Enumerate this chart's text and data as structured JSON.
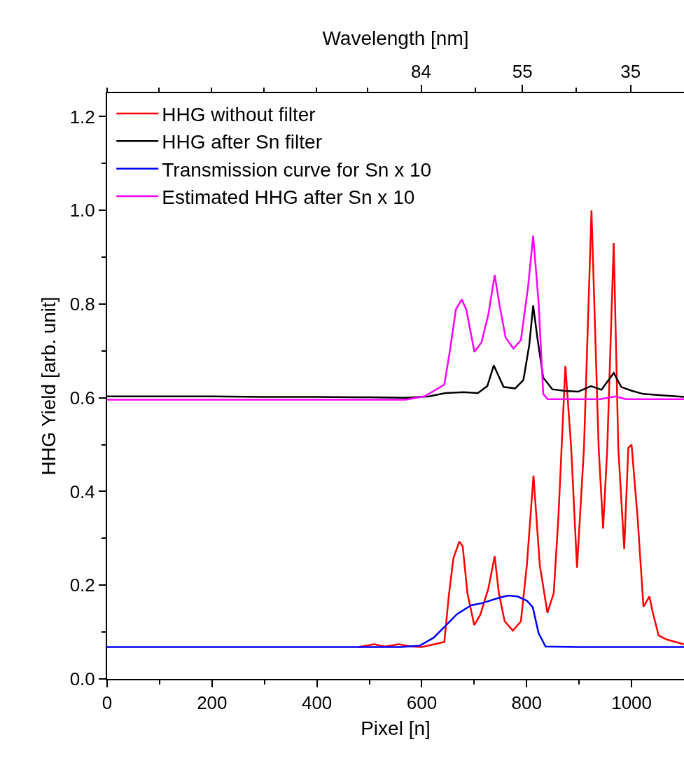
{
  "chart_data": {
    "type": "line",
    "xlabel": "Pixel [n]",
    "ylabel": "HHG Yield [arb. unit]",
    "x2label": "Wavelength [nm]",
    "xlim": [
      0,
      1100
    ],
    "ylim": [
      0,
      1.25
    ],
    "xticks": [
      0,
      {
        "value": 100,
        "label": null
      },
      200,
      {
        "value": 300,
        "label": null
      },
      400,
      {
        "value": 500,
        "label": null
      },
      600,
      {
        "value": 700,
        "label": null
      },
      800,
      {
        "value": 900,
        "label": null
      },
      1000
    ],
    "x2lim": [
      312,
      28
    ],
    "log": "x2",
    "x2ticks": [
      {
        "value": 312,
        "label": null
      },
      {
        "value": 251,
        "label": null
      },
      {
        "value": 202,
        "label": null
      },
      {
        "value": 162,
        "label": null
      },
      {
        "value": 130,
        "label": null
      },
      {
        "value": 105,
        "label": null
      },
      84,
      {
        "value": 67,
        "label": null
      },
      55,
      {
        "value": 44,
        "label": null
      },
      35
    ],
    "yticks": [
      {
        "value": 0,
        "label": "0.0"
      },
      {
        "value": 0.1,
        "label": null
      },
      {
        "value": 0.2,
        "label": "0.2"
      },
      {
        "value": 0.3,
        "label": null
      },
      {
        "value": 0.4,
        "label": "0.4"
      },
      {
        "value": 0.5,
        "label": null
      },
      {
        "value": 0.6,
        "label": "0.6"
      },
      {
        "value": 0.7,
        "label": null
      },
      {
        "value": 0.8,
        "label": "0.8"
      },
      {
        "value": 0.9,
        "label": null
      },
      {
        "value": 1.0,
        "label": "1.0"
      },
      {
        "value": 1.1,
        "label": null
      },
      {
        "value": 1.2,
        "label": "1.2"
      }
    ],
    "legend": "top left",
    "marker": "none",
    "line_style": "solid",
    "series": [
      {
        "name": "HHG without filter",
        "color": "#ff0000",
        "x": [
          480,
          509,
          530,
          556,
          580,
          600,
          631.5,
          643,
          651.6,
          660.4,
          671.6,
          678,
          687,
          700,
          711.6,
          727,
          739,
          747,
          758,
          773.8,
          789,
          800.4,
          813,
          825,
          839.6,
          851.6,
          860.4,
          873.8,
          884.9,
          896,
          909.3,
          923.6,
          937.3,
          945.8,
          953.7,
          966,
          974.7,
          986,
          993.8,
          1000,
          1011.6,
          1022.7,
          1034,
          1040,
          1051.6,
          1067,
          1100
        ],
        "values": [
          0.068,
          0.074,
          0.069,
          0.074,
          0.069,
          0.068,
          0.076,
          0.079,
          0.178,
          0.258,
          0.293,
          0.283,
          0.183,
          0.115,
          0.137,
          0.193,
          0.262,
          0.183,
          0.123,
          0.103,
          0.123,
          0.243,
          0.434,
          0.243,
          0.141,
          0.183,
          0.343,
          0.668,
          0.493,
          0.237,
          0.493,
          1.0,
          0.493,
          0.321,
          0.493,
          0.93,
          0.493,
          0.277,
          0.493,
          0.5,
          0.343,
          0.154,
          0.176,
          0.144,
          0.093,
          0.084,
          0.074
        ]
      },
      {
        "name": "HHG after Sn filter",
        "color": "#000000",
        "x": [
          0,
          100,
          200,
          300,
          400,
          500,
          569,
          614,
          645,
          680,
          707,
          725,
          737.3,
          756,
          778,
          793.8,
          805,
          812.4,
          820.4,
          831.6,
          849,
          871.6,
          898,
          922.7,
          942.7,
          966,
          980.4,
          1000.4,
          1022.7,
          1100
        ],
        "values": [
          0.603,
          0.603,
          0.603,
          0.602,
          0.602,
          0.601,
          0.6,
          0.603,
          0.61,
          0.612,
          0.61,
          0.625,
          0.669,
          0.623,
          0.62,
          0.638,
          0.713,
          0.797,
          0.728,
          0.643,
          0.618,
          0.615,
          0.613,
          0.625,
          0.617,
          0.653,
          0.623,
          0.615,
          0.608,
          0.602
        ]
      },
      {
        "name": "Transmission curve for Sn x 10",
        "color": "#0000ff",
        "x": [
          0,
          300,
          560,
          596,
          622.7,
          645,
          667,
          694,
          716,
          747,
          765,
          782.7,
          800.4,
          811.6,
          822.7,
          836,
          900,
          1100
        ],
        "values": [
          0.068,
          0.068,
          0.068,
          0.071,
          0.088,
          0.113,
          0.138,
          0.157,
          0.162,
          0.173,
          0.178,
          0.176,
          0.167,
          0.153,
          0.098,
          0.069,
          0.068,
          0.068
        ]
      },
      {
        "name": "Estimated HHG after Sn x 10",
        "color": "#ff00ff",
        "x": [
          0,
          300,
          569,
          605,
          643,
          654,
          665,
          676,
          685,
          700.4,
          713.8,
          727,
          739,
          749,
          760,
          774.7,
          789,
          802.7,
          812.4,
          822.7,
          831.6,
          840,
          940,
          969.3,
          989,
          1100
        ],
        "values": [
          0.596,
          0.596,
          0.596,
          0.603,
          0.628,
          0.703,
          0.788,
          0.81,
          0.788,
          0.698,
          0.718,
          0.778,
          0.862,
          0.793,
          0.728,
          0.705,
          0.723,
          0.837,
          0.946,
          0.803,
          0.608,
          0.597,
          0.597,
          0.603,
          0.597,
          0.597
        ]
      }
    ]
  }
}
